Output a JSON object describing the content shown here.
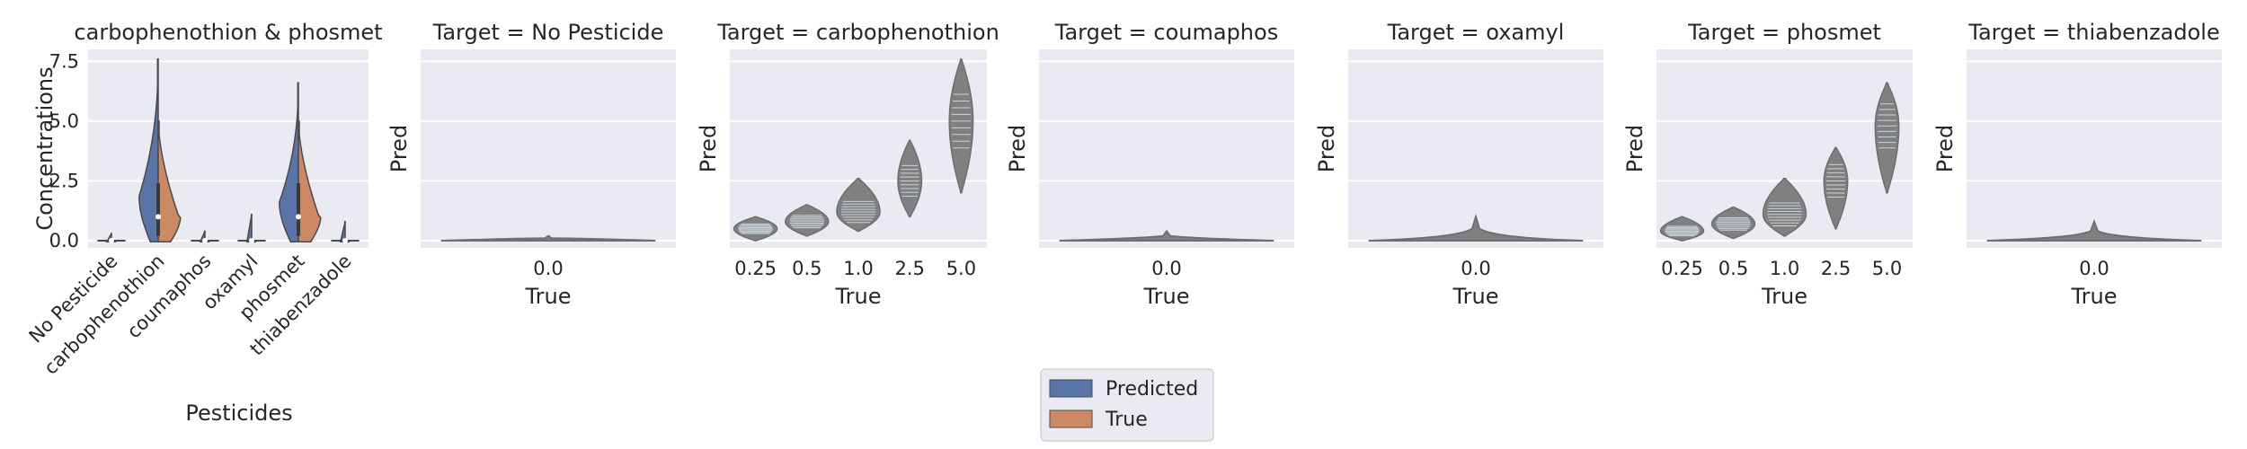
{
  "figure": {
    "legend": {
      "placement": "bottom-center",
      "entries": [
        {
          "label": "Predicted",
          "color": "#5874a8"
        },
        {
          "label": "True",
          "color": "#cc8963"
        }
      ]
    }
  },
  "chart_data": [
    {
      "type": "violin",
      "title": "carbophenothion & phosmet",
      "xlabel": "Pesticides",
      "ylabel": "Concentrations",
      "ylim": [
        -0.3,
        8.0
      ],
      "yticks": [
        0.0,
        2.5,
        5.0,
        7.5
      ],
      "ytick_labels": [
        "0.0",
        "2.5",
        "5.0",
        "7.5"
      ],
      "categories": [
        "No Pesticide",
        "carbophenothion",
        "coumaphos",
        "oxamyl",
        "phosmet",
        "thiabenzadole"
      ],
      "grid": true,
      "series": [
        {
          "name": "Predicted",
          "color": "#5874a8",
          "max": [
            0.3,
            7.6,
            0.4,
            1.1,
            6.6,
            0.8
          ],
          "median": [
            0.0,
            1.0,
            0.0,
            0.0,
            1.0,
            0.0
          ]
        },
        {
          "name": "True",
          "color": "#cc8963",
          "max": [
            0.0,
            5.0,
            0.0,
            0.0,
            5.0,
            0.0
          ],
          "median": [
            0.0,
            1.0,
            0.0,
            0.0,
            1.0,
            0.0
          ]
        }
      ]
    },
    {
      "type": "violin",
      "title": "Target = No Pesticide",
      "xlabel": "True",
      "ylabel": "Pred",
      "ylim": [
        -0.3,
        8.0
      ],
      "categories": [
        "0.0"
      ],
      "grid": true,
      "spread_max": [
        0.2
      ]
    },
    {
      "type": "violin",
      "title": "Target = carbophenothion",
      "xlabel": "True",
      "ylabel": "Pred",
      "ylim": [
        -0.3,
        8.0
      ],
      "categories": [
        "0.25",
        "0.5",
        "1.0",
        "2.5",
        "5.0"
      ],
      "grid": true,
      "spread_min": [
        0.0,
        0.2,
        0.4,
        1.0,
        2.0
      ],
      "spread_max": [
        1.0,
        1.5,
        2.6,
        4.2,
        7.6
      ],
      "center": [
        0.5,
        0.8,
        1.2,
        2.5,
        5.0
      ]
    },
    {
      "type": "violin",
      "title": "Target = coumaphos",
      "xlabel": "True",
      "ylabel": "Pred",
      "ylim": [
        -0.3,
        8.0
      ],
      "categories": [
        "0.0"
      ],
      "grid": true,
      "spread_max": [
        0.4
      ]
    },
    {
      "type": "violin",
      "title": "Target = oxamyl",
      "xlabel": "True",
      "ylabel": "Pred",
      "ylim": [
        -0.3,
        8.0
      ],
      "categories": [
        "0.0"
      ],
      "grid": true,
      "spread_max": [
        1.0
      ]
    },
    {
      "type": "violin",
      "title": "Target = phosmet",
      "xlabel": "True",
      "ylabel": "Pred",
      "ylim": [
        -0.3,
        8.0
      ],
      "categories": [
        "0.25",
        "0.5",
        "1.0",
        "2.5",
        "5.0"
      ],
      "grid": true,
      "spread_min": [
        0.0,
        0.1,
        0.2,
        0.5,
        2.0
      ],
      "spread_max": [
        1.0,
        1.4,
        2.6,
        3.9,
        6.6
      ],
      "center": [
        0.4,
        0.7,
        1.1,
        2.5,
        4.8
      ]
    },
    {
      "type": "violin",
      "title": "Target = thiabenzadole",
      "xlabel": "True",
      "ylabel": "Pred",
      "ylim": [
        -0.3,
        8.0
      ],
      "categories": [
        "0.0"
      ],
      "grid": true,
      "spread_max": [
        0.8
      ]
    }
  ]
}
